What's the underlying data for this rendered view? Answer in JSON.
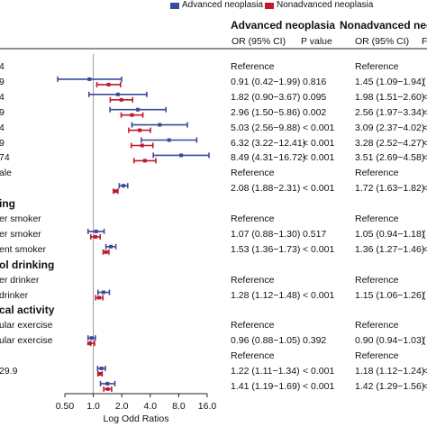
{
  "chart_data": {
    "type": "forest",
    "xlabel": "Log Odd Ratios",
    "x_scale": "log",
    "xlim": [
      0.5,
      16.0
    ],
    "x_ticks": [
      "0.50",
      "1.0",
      "2.0",
      "4.0",
      "8.0",
      "16.0"
    ],
    "x_tick_values": [
      0.5,
      1.0,
      2.0,
      4.0,
      8.0,
      16.0
    ],
    "reference_line": 1.0,
    "legend": [
      {
        "name": "Advanced neoplasia",
        "color": "#3a4a9c"
      },
      {
        "name": "Nonadvanced neoplasia",
        "color": "#c0192d"
      }
    ],
    "column_headers": {
      "advanced": "Advanced neoplasia",
      "nonadvanced": "Nonadvanced neo",
      "or_ci": "OR (95% CI)",
      "p_value": "P value",
      "or_ci_2": "OR (95% CI)",
      "p_trunc": "F"
    },
    "rows": [
      {
        "label": "4",
        "adv_text": "Reference",
        "adv_p": "",
        "non_text": "Reference"
      },
      {
        "label": "9",
        "adv": [
          0.91,
          0.42,
          1.99
        ],
        "non": [
          1.45,
          1.09,
          1.94
        ],
        "adv_text": "0.91 (0.42−1.99)",
        "adv_p": "0.816",
        "non_text": "1.45 (1.09−1.94)",
        "non_p": "("
      },
      {
        "label": "4",
        "adv": [
          1.82,
          0.9,
          3.67
        ],
        "non": [
          1.98,
          1.51,
          2.6
        ],
        "adv_text": "1.82 (0.90−3.67)",
        "adv_p": "0.095",
        "non_text": "1.98 (1.51−2.60)",
        "non_p": "<"
      },
      {
        "label": "9",
        "adv": [
          2.96,
          1.5,
          5.86
        ],
        "non": [
          2.56,
          1.97,
          3.34
        ],
        "adv_text": "2.96 (1.50−5.86)",
        "adv_p": "0.002",
        "non_text": "2.56 (1.97−3.34)",
        "non_p": "<"
      },
      {
        "label": "4",
        "adv": [
          5.03,
          2.56,
          9.88
        ],
        "non": [
          3.09,
          2.37,
          4.02
        ],
        "adv_text": "5.03 (2.56−9.88)",
        "adv_p": "< 0.001",
        "non_text": "3.09 (2.37−4.02)",
        "non_p": "<"
      },
      {
        "label": "9",
        "adv": [
          6.32,
          3.22,
          12.41
        ],
        "non": [
          3.28,
          2.52,
          4.27
        ],
        "adv_text": "6.32 (3.22−12.41)",
        "adv_p": "< 0.001",
        "non_text": "3.28 (2.52−4.27)",
        "non_p": "<"
      },
      {
        "label": "74",
        "adv": [
          8.49,
          4.31,
          16.72
        ],
        "non": [
          3.51,
          2.69,
          4.58
        ],
        "adv_text": "8.49 (4.31−16.72)",
        "adv_p": "< 0.001",
        "non_text": "3.51 (2.69−4.58)",
        "non_p": "<"
      },
      {
        "label": "ale",
        "adv_text": "Reference",
        "adv_p": "",
        "non_text": "Reference"
      },
      {
        "label": "",
        "adv": [
          2.08,
          1.88,
          2.31
        ],
        "non": [
          1.72,
          1.63,
          1.82
        ],
        "adv_text": "2.08 (1.88−2.31)",
        "adv_p": "< 0.001",
        "non_text": "1.72 (1.63−1.82)",
        "non_p": "<"
      },
      {
        "label": "ing",
        "bold": true
      },
      {
        "label": "er smoker",
        "adv_text": "Reference",
        "adv_p": "",
        "non_text": "Reference"
      },
      {
        "label": "er smoker",
        "adv": [
          1.07,
          0.88,
          1.3
        ],
        "non": [
          1.05,
          0.94,
          1.18
        ],
        "adv_text": "1.07 (0.88−1.30)",
        "adv_p": "0.517",
        "non_text": "1.05 (0.94−1.18)",
        "non_p": "("
      },
      {
        "label": "ent smoker",
        "adv": [
          1.53,
          1.36,
          1.73
        ],
        "non": [
          1.36,
          1.27,
          1.46
        ],
        "adv_text": "1.53 (1.36−1.73)",
        "adv_p": "< 0.001",
        "non_text": "1.36 (1.27−1.46)",
        "non_p": "<"
      },
      {
        "label": "ol drinking",
        "bold": true
      },
      {
        "label": "er drinker",
        "adv_text": "Reference",
        "adv_p": "",
        "non_text": "Reference"
      },
      {
        "label": " drinker",
        "adv": [
          1.28,
          1.12,
          1.48
        ],
        "non": [
          1.15,
          1.06,
          1.26
        ],
        "adv_text": "1.28 (1.12−1.48)",
        "adv_p": "< 0.001",
        "non_text": "1.15 (1.06−1.26)",
        "non_p": "("
      },
      {
        "label": "cal activity",
        "bold": true
      },
      {
        "label": "ular exercise",
        "adv_text": "Reference",
        "adv_p": "",
        "non_text": "Reference"
      },
      {
        "label": "ular exercise",
        "adv": [
          0.96,
          0.88,
          1.05
        ],
        "non": [
          0.9,
          0.94,
          1.03
        ],
        "adv_text": "0.96 (0.88−1.05)",
        "adv_p": "0.392",
        "non_text": "0.90 (0.94−1.03)",
        "non_p": "("
      },
      {
        "label": "",
        "adv_text": "Reference",
        "adv_p": "",
        "non_text": "Reference"
      },
      {
        "label": "29.9",
        "adv": [
          1.22,
          1.11,
          1.34
        ],
        "non": [
          1.18,
          1.12,
          1.24
        ],
        "adv_text": "1.22 (1.11−1.34)",
        "adv_p": "< 0.001",
        "non_text": "1.18 (1.12−1.24)",
        "non_p": "<"
      },
      {
        "label": "",
        "adv": [
          1.41,
          1.19,
          1.69
        ],
        "non": [
          1.42,
          1.29,
          1.56
        ],
        "adv_text": "1.41 (1.19−1.69)",
        "adv_p": "< 0.001",
        "non_text": "1.42 (1.29−1.56)",
        "non_p": "<"
      }
    ]
  }
}
